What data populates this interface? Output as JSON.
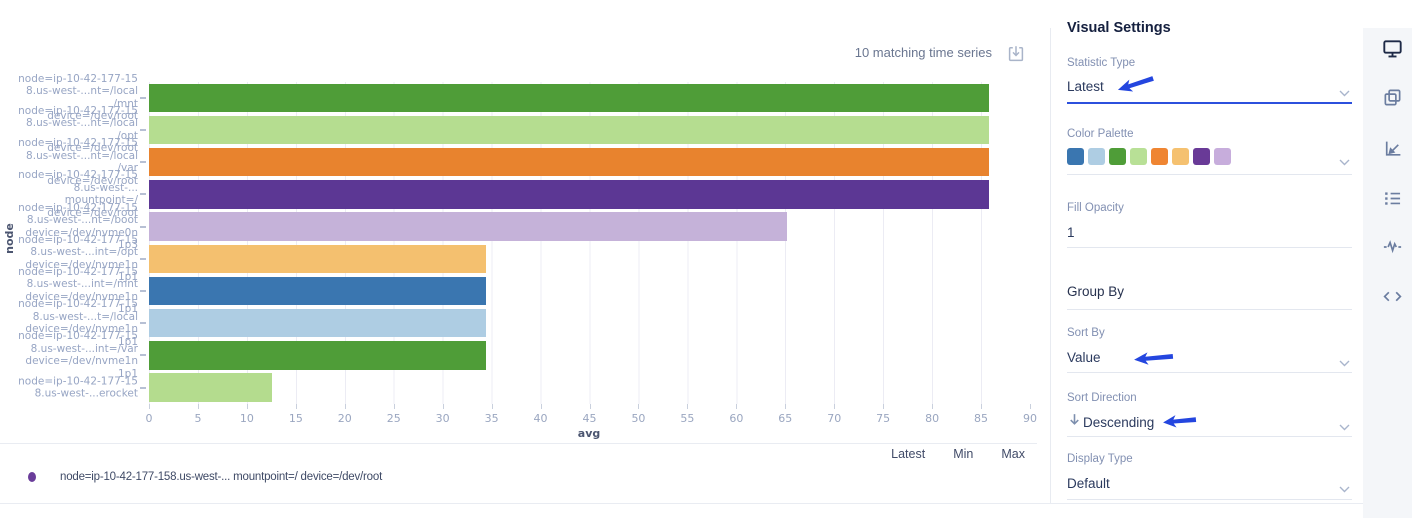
{
  "header": {
    "matching_text": "10 matching time series"
  },
  "chart_data": {
    "type": "bar",
    "orientation": "horizontal",
    "series_name": "avg",
    "xlabel": "avg",
    "ylabel": "node",
    "xlim": [
      0,
      90
    ],
    "grid": true,
    "xticks": [
      0,
      5,
      10,
      15,
      20,
      25,
      30,
      35,
      40,
      45,
      50,
      55,
      60,
      65,
      70,
      75,
      80,
      85,
      90
    ],
    "bars": [
      {
        "label_lines": [
          "node=ip-10-42-177-15",
          "8.us-west-...nt=/local",
          "/mnt",
          "device=/dev/root"
        ],
        "value": 85.8,
        "color": "#4f9d38"
      },
      {
        "label_lines": [
          "node=ip-10-42-177-15",
          "8.us-west-...nt=/local",
          "/opt",
          "device=/dev/root"
        ],
        "value": 85.8,
        "color": "#b5dd90"
      },
      {
        "label_lines": [
          "node=ip-10-42-177-15",
          "8.us-west-...nt=/local",
          "/var",
          "device=/dev/root"
        ],
        "value": 85.8,
        "color": "#e8832e"
      },
      {
        "label_lines": [
          "node=ip-10-42-177-15",
          "8.us-west-...",
          "mountpoint=/",
          "device=/dev/root"
        ],
        "value": 85.8,
        "color": "#5c3794"
      },
      {
        "label_lines": [
          "node=ip-10-42-177-15",
          "8.us-west-...nt=/boot",
          "device=/dev/nvme0n",
          "1p3"
        ],
        "value": 65.2,
        "color": "#c5b2d9"
      },
      {
        "label_lines": [
          "node=ip-10-42-177-15",
          "8.us-west-...int=/opt",
          "device=/dev/nvme1n",
          "1p1"
        ],
        "value": 34.4,
        "color": "#f4c06f"
      },
      {
        "label_lines": [
          "node=ip-10-42-177-15",
          "8.us-west-...int=/mnt",
          "device=/dev/nvme1n",
          "1p1"
        ],
        "value": 34.4,
        "color": "#3a76b0"
      },
      {
        "label_lines": [
          "node=ip-10-42-177-15",
          "8.us-west-...t=/local",
          "device=/dev/nvme1n",
          "1p1"
        ],
        "value": 34.4,
        "color": "#aecde3"
      },
      {
        "label_lines": [
          "node=ip-10-42-177-15",
          "8.us-west-...int=/var",
          "device=/dev/nvme1n",
          "1p1"
        ],
        "value": 34.4,
        "color": "#4f9d38"
      },
      {
        "label_lines": [
          "node=ip-10-42-177-15",
          "8.us-west-...erocket"
        ],
        "value": 12.6,
        "color": "#b4dc8e"
      }
    ]
  },
  "legend": {
    "columns": [
      "Latest",
      "Min",
      "Max"
    ],
    "items": [
      {
        "color": "#6a3d9a",
        "text": "node=ip-10-42-177-158.us-west-... mountpoint=/ device=/dev/root"
      }
    ]
  },
  "settings": {
    "title": "Visual Settings",
    "statistic_type": {
      "label": "Statistic Type",
      "value": "Latest"
    },
    "color_palette": {
      "label": "Color Palette",
      "colors": [
        "#3a76b0",
        "#aecde3",
        "#4f9d38",
        "#b8e096",
        "#ef8532",
        "#f5c170",
        "#693a97",
        "#c7addc"
      ]
    },
    "fill_opacity": {
      "label": "Fill Opacity",
      "value": "1"
    },
    "group_by": {
      "label": "Group By"
    },
    "sort_by": {
      "label": "Sort By",
      "value": "Value"
    },
    "sort_direction": {
      "label": "Sort Direction",
      "value": "Descending"
    },
    "display_type": {
      "label": "Display Type",
      "value": "Default"
    },
    "accent_color": "#2c50dd",
    "annotation_arrow_color": "#2446df"
  },
  "toolbar": {
    "icons": [
      "monitor-icon",
      "panels-icon",
      "axes-icon",
      "list-icon",
      "pulse-icon",
      "code-icon"
    ]
  }
}
